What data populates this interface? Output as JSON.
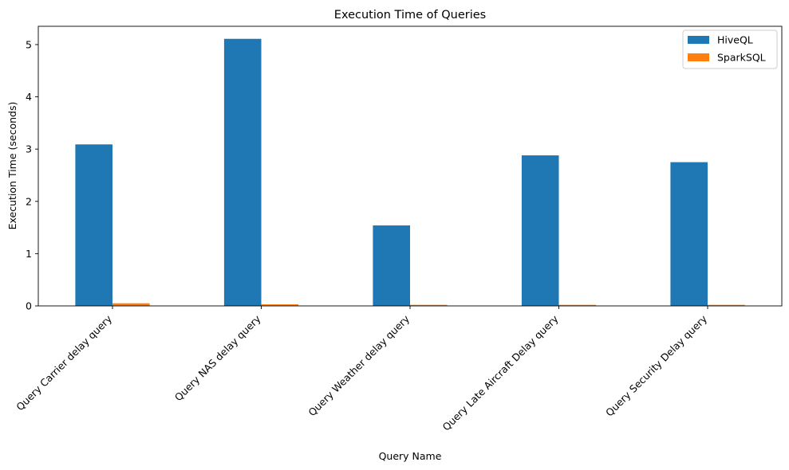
{
  "chart_data": {
    "type": "bar",
    "title": "Execution Time of Queries",
    "xlabel": "Query Name",
    "ylabel": "Execution Time (seconds)",
    "categories": [
      "Query Carrier delay query",
      "Query NAS delay query",
      "Query Weather delay query",
      "Query Late Aircraft Delay query",
      "Query Security Delay query"
    ],
    "series": [
      {
        "name": "HiveQL",
        "color": "#1f77b4",
        "values": [
          3.09,
          5.11,
          1.54,
          2.88,
          2.75
        ]
      },
      {
        "name": "SparkSQL",
        "color": "#ff7f0e",
        "values": [
          0.05,
          0.03,
          0.02,
          0.02,
          0.02
        ]
      }
    ],
    "ylim": [
      0,
      5.35
    ],
    "yticks": [
      0,
      1,
      2,
      3,
      4,
      5
    ],
    "grid": false,
    "legend_position": "top-right",
    "xtick_rotation": 45
  }
}
